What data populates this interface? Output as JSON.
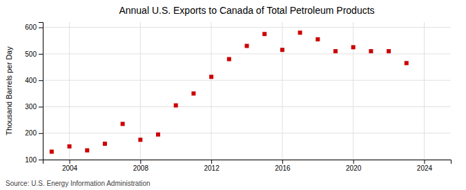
{
  "chart_data": {
    "type": "scatter",
    "title": "Annual U.S. Exports to Canada of Total Petroleum Products",
    "ylabel": "Thousand Barrels per Day",
    "source": "Source: U.S. Energy Information Administration",
    "x": [
      2003,
      2004,
      2005,
      2006,
      2007,
      2008,
      2009,
      2010,
      2011,
      2012,
      2013,
      2014,
      2015,
      2016,
      2017,
      2018,
      2019,
      2020,
      2021,
      2022,
      2023
    ],
    "values": [
      130,
      150,
      135,
      160,
      235,
      175,
      195,
      305,
      350,
      413,
      480,
      530,
      575,
      515,
      580,
      555,
      510,
      525,
      510,
      510,
      465
    ],
    "color": "#cc0000",
    "marker": "square",
    "xlim": [
      2002.5,
      2025.5
    ],
    "xticks": [
      2004,
      2008,
      2012,
      2016,
      2020,
      2024
    ],
    "ylim": [
      100,
      620
    ],
    "yticks": [
      100,
      200,
      300,
      400,
      500,
      600
    ],
    "grid": true
  }
}
